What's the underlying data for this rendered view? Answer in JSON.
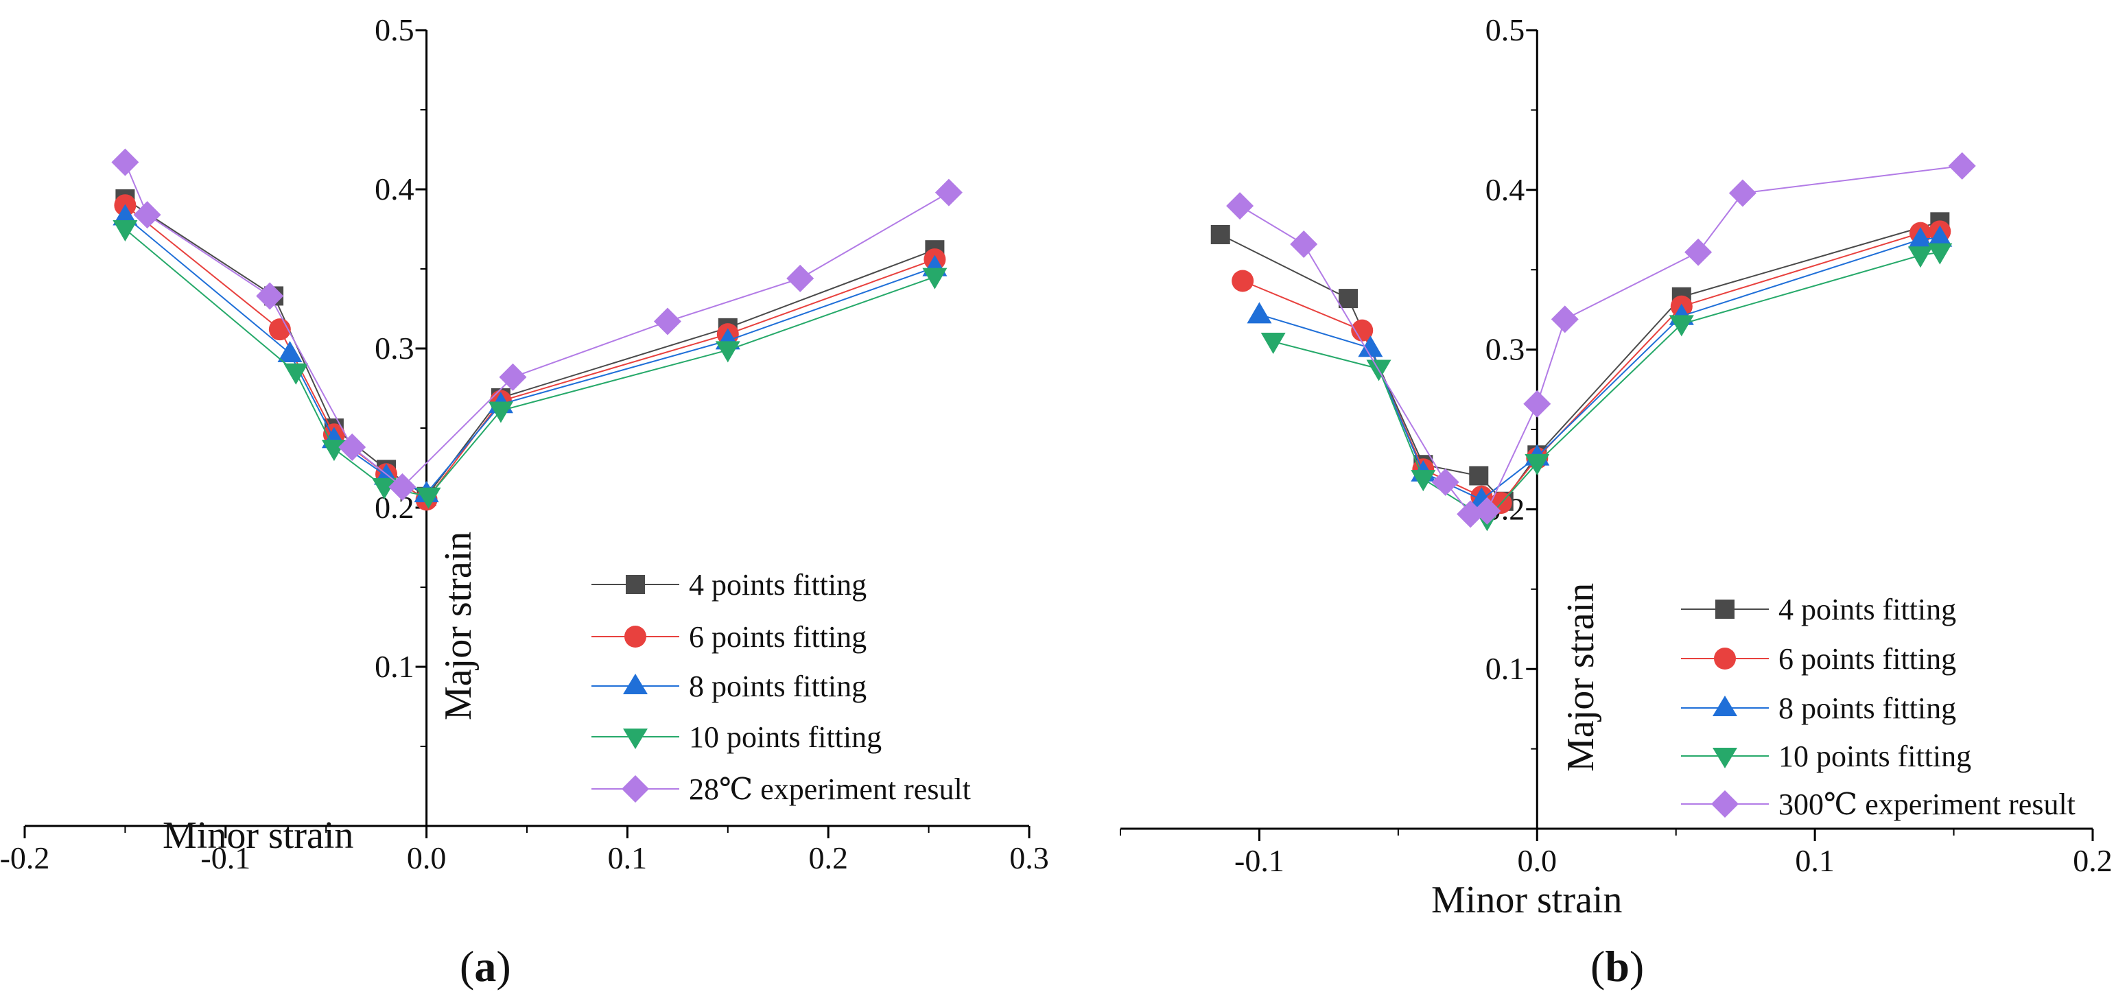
{
  "chart_data": [
    {
      "type": "line",
      "panel": "a",
      "xlabel": "Minor strain",
      "ylabel": "Major strain",
      "xlim": [
        -0.2,
        0.3
      ],
      "ylim": [
        0.0,
        0.5
      ],
      "xticks": [
        -0.2,
        -0.1,
        0.0,
        0.1,
        0.2,
        0.3
      ],
      "xtick_labels": [
        "-0.2",
        "-0.1",
        "0.0",
        "0.1",
        "0.2",
        "0.3"
      ],
      "yticks": [
        0.1,
        0.2,
        0.3,
        0.4,
        0.5
      ],
      "ytick_labels": [
        "0.1",
        "0.2",
        "0.3",
        "0.4",
        "0.5"
      ],
      "legend_position": "bottom-right",
      "series": [
        {
          "name": "4  points fitting",
          "color": "#4a4a4a",
          "marker": "square",
          "x": [
            -0.15,
            -0.076,
            -0.046,
            -0.02,
            0.0,
            0.037,
            0.15,
            0.253
          ],
          "y": [
            0.394,
            0.333,
            0.25,
            0.224,
            0.207,
            0.269,
            0.313,
            0.362
          ]
        },
        {
          "name": "6  points fitting",
          "color": "#e8413e",
          "marker": "circle",
          "x": [
            -0.15,
            -0.073,
            -0.046,
            -0.02,
            0.0,
            0.037,
            0.15,
            0.253
          ],
          "y": [
            0.39,
            0.312,
            0.246,
            0.221,
            0.205,
            0.267,
            0.309,
            0.356
          ]
        },
        {
          "name": "8  points fitting",
          "color": "#1f6fd8",
          "marker": "triangle-up",
          "x": [
            -0.15,
            -0.068,
            -0.046,
            -0.02,
            0.0,
            0.037,
            0.15,
            0.253
          ],
          "y": [
            0.383,
            0.297,
            0.243,
            0.22,
            0.209,
            0.265,
            0.305,
            0.351
          ]
        },
        {
          "name": "10 points fitting",
          "color": "#26a96a",
          "marker": "triangle-down",
          "x": [
            -0.15,
            -0.065,
            -0.046,
            -0.021,
            0.001,
            0.037,
            0.15,
            0.253
          ],
          "y": [
            0.375,
            0.285,
            0.237,
            0.213,
            0.207,
            0.261,
            0.299,
            0.345
          ]
        },
        {
          "name": "28℃ experiment result",
          "color": "#b27be6",
          "marker": "diamond",
          "x": [
            -0.15,
            -0.139,
            -0.078,
            -0.037,
            -0.012,
            0.043,
            0.12,
            0.186,
            0.26
          ],
          "y": [
            0.417,
            0.384,
            0.333,
            0.238,
            0.213,
            0.282,
            0.317,
            0.344,
            0.398
          ]
        }
      ]
    },
    {
      "type": "line",
      "panel": "b",
      "xlabel": "Minor strain",
      "ylabel": "Major strain",
      "xlim": [
        -0.15,
        0.2
      ],
      "ylim": [
        0.0,
        0.5
      ],
      "xticks": [
        -0.1,
        0.0,
        0.1,
        0.2
      ],
      "xtick_labels": [
        "-0.1",
        "0.0",
        "0.1",
        "0.2"
      ],
      "yticks": [
        0.1,
        0.2,
        0.3,
        0.4,
        0.5
      ],
      "ytick_labels": [
        "0.1",
        "0.2",
        "0.3",
        "0.4",
        "0.5"
      ],
      "legend_position": "bottom-right",
      "series": [
        {
          "name": "4  points fitting",
          "color": "#4a4a4a",
          "marker": "square",
          "x": [
            -0.114,
            -0.068,
            -0.041,
            -0.021,
            -0.012,
            0.0,
            0.052,
            0.145
          ],
          "y": [
            0.372,
            0.332,
            0.228,
            0.221,
            0.205,
            0.234,
            0.333,
            0.38
          ]
        },
        {
          "name": "6  points fitting",
          "color": "#e8413e",
          "marker": "circle",
          "x": [
            -0.106,
            -0.063,
            -0.041,
            -0.02,
            -0.013,
            0.0,
            0.052,
            0.138,
            0.145
          ],
          "y": [
            0.343,
            0.312,
            0.225,
            0.208,
            0.204,
            0.232,
            0.327,
            0.373,
            0.374
          ]
        },
        {
          "name": "8  points fitting",
          "color": "#1f6fd8",
          "marker": "triangle-up",
          "x": [
            -0.1,
            -0.06,
            -0.041,
            -0.02,
            0.0,
            0.052,
            0.138,
            0.145
          ],
          "y": [
            0.322,
            0.301,
            0.223,
            0.206,
            0.233,
            0.321,
            0.369,
            0.37
          ]
        },
        {
          "name": "10 points fitting",
          "color": "#26a96a",
          "marker": "triangle-down",
          "x": [
            -0.095,
            -0.057,
            -0.041,
            -0.018,
            0.0,
            0.052,
            0.138,
            0.145
          ],
          "y": [
            0.305,
            0.288,
            0.219,
            0.194,
            0.229,
            0.316,
            0.359,
            0.361
          ]
        },
        {
          "name": "300℃ experiment result",
          "color": "#b27be6",
          "marker": "diamond",
          "x": [
            -0.107,
            -0.084,
            -0.033,
            -0.024,
            -0.018,
            0.0,
            0.01,
            0.058,
            0.074,
            0.153
          ],
          "y": [
            0.39,
            0.366,
            0.217,
            0.197,
            0.199,
            0.266,
            0.319,
            0.361,
            0.398,
            0.415
          ]
        }
      ]
    }
  ],
  "panel_labels": [
    {
      "open": "(",
      "letter": "a",
      "close": ")"
    },
    {
      "open": "(",
      "letter": "b",
      "close": ")"
    }
  ]
}
